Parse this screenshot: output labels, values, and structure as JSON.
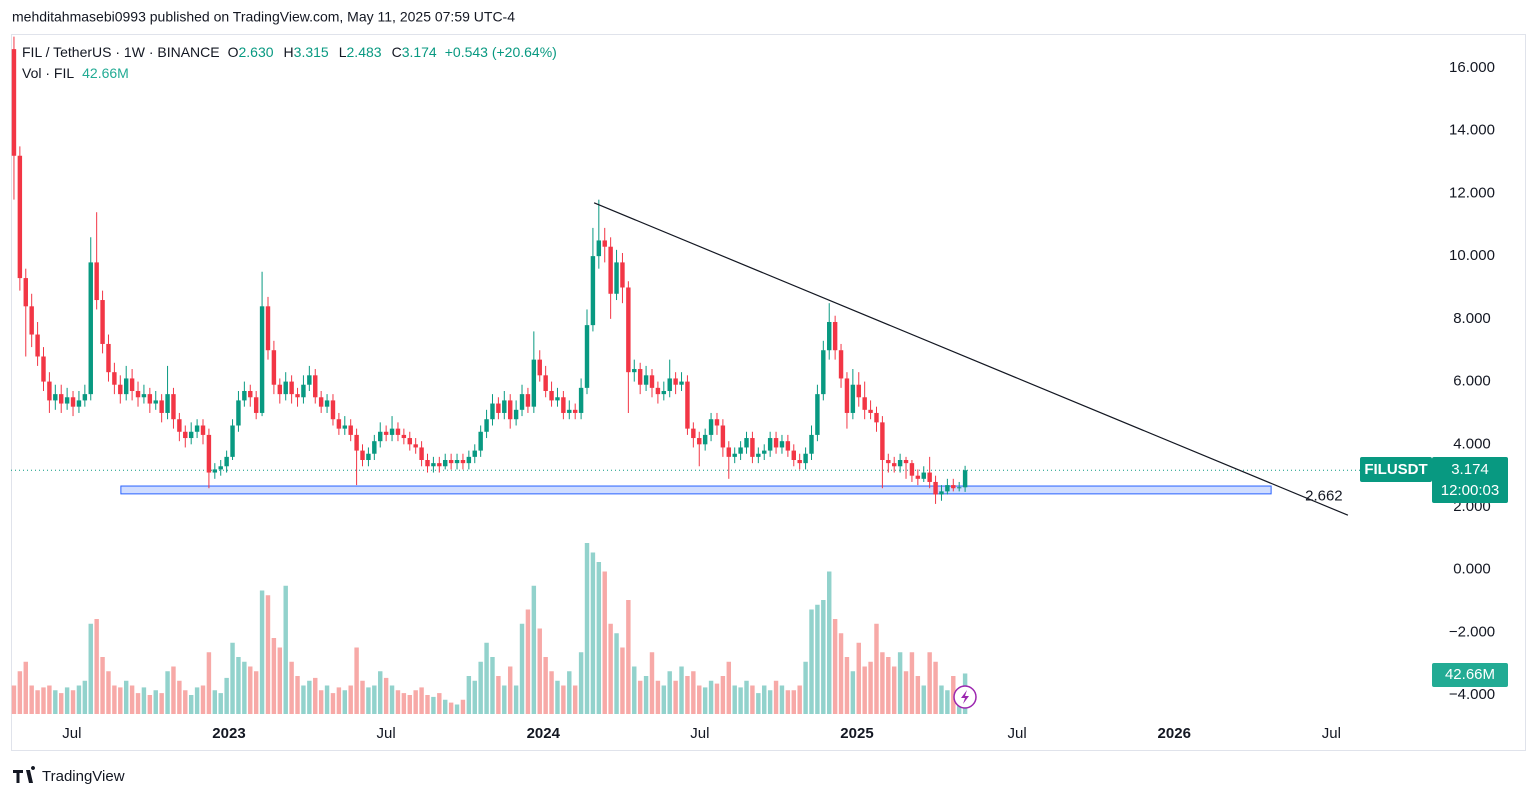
{
  "header": {
    "author_line": "mehditahmasebi0993 published on TradingView.com, May 11, 2025 07:59 UTC-4"
  },
  "footer": {
    "brand": "TradingView"
  },
  "chart_data": {
    "type": "candlestick",
    "symbol": "FIL / TetherUS · 1W · BINANCE",
    "ohlc_legend": [
      {
        "key": "O",
        "value": "2.630"
      },
      {
        "key": "H",
        "value": "3.315"
      },
      {
        "key": "L",
        "value": "2.483"
      },
      {
        "key": "C",
        "value": "3.174"
      }
    ],
    "change": "+0.543 (+20.64%)",
    "volume_title": "Vol · FIL",
    "ticker": "FILUSDT",
    "last_price": {
      "value": 3.174,
      "label": "3.174"
    },
    "countdown": "12:00:03",
    "last_volume": {
      "value": 42.66,
      "label": "42.66M"
    },
    "colors": {
      "up": "#089981",
      "down": "#f23645",
      "vol_up": "#92d2cc",
      "vol_down": "#f7a9a7"
    },
    "ylim": [
      -4.63,
      17.05
    ],
    "yticks": [
      {
        "value": -4,
        "label": "−4.000"
      },
      {
        "value": -2,
        "label": "−2.000"
      },
      {
        "value": 0,
        "label": "0.000"
      },
      {
        "value": 2,
        "label": "2.000"
      },
      {
        "value": 4,
        "label": "4.000"
      },
      {
        "value": 6,
        "label": "6.000"
      },
      {
        "value": 8,
        "label": "8.000"
      },
      {
        "value": 10,
        "label": "10.000"
      },
      {
        "value": 12,
        "label": "12.000"
      },
      {
        "value": 14,
        "label": "14.000"
      },
      {
        "value": 16,
        "label": "16.000"
      }
    ],
    "xlim": [
      -0.5,
      238
    ],
    "xticks": [
      {
        "value": 9.8,
        "label": "Jul"
      },
      {
        "value": 36.4,
        "label": "2023"
      },
      {
        "value": 63.0,
        "label": "Jul"
      },
      {
        "value": 89.6,
        "label": "2024"
      },
      {
        "value": 116.1,
        "label": "Jul"
      },
      {
        "value": 142.7,
        "label": "2025"
      },
      {
        "value": 169.8,
        "label": "Jul"
      },
      {
        "value": 196.4,
        "label": "2026"
      },
      {
        "value": 223.0,
        "label": "Jul"
      }
    ],
    "trendline": {
      "x": [
        98.2,
        225.8
      ],
      "y": [
        11.7,
        1.74
      ]
    },
    "zone": {
      "level": 2.662,
      "range": [
        2.42,
        2.67
      ],
      "x": [
        18.1,
        212.8
      ]
    },
    "candles": [
      [
        16.6,
        17.0,
        11.8,
        13.2
      ],
      [
        13.2,
        13.5,
        8.9,
        9.3
      ],
      [
        9.3,
        9.6,
        6.8,
        8.4
      ],
      [
        8.4,
        8.8,
        7.1,
        7.5
      ],
      [
        7.5,
        7.9,
        6.5,
        6.8
      ],
      [
        6.8,
        7.1,
        5.7,
        6.0
      ],
      [
        6.0,
        6.3,
        5.0,
        5.4
      ],
      [
        5.4,
        5.9,
        5.1,
        5.6
      ],
      [
        5.6,
        5.9,
        5.0,
        5.3
      ],
      [
        5.3,
        5.8,
        5.1,
        5.5
      ],
      [
        5.5,
        5.7,
        4.9,
        5.2
      ],
      [
        5.2,
        5.7,
        5.0,
        5.4
      ],
      [
        5.4,
        5.9,
        5.2,
        5.6
      ],
      [
        5.6,
        10.6,
        5.4,
        9.8
      ],
      [
        9.8,
        11.4,
        8.3,
        8.6
      ],
      [
        8.6,
        8.9,
        6.9,
        7.2
      ],
      [
        7.2,
        7.5,
        6.0,
        6.3
      ],
      [
        6.3,
        6.6,
        5.6,
        5.9
      ],
      [
        5.9,
        6.2,
        5.3,
        5.6
      ],
      [
        5.6,
        6.5,
        5.4,
        6.1
      ],
      [
        6.1,
        6.4,
        5.4,
        5.7
      ],
      [
        5.7,
        6.0,
        5.2,
        5.5
      ],
      [
        5.5,
        5.9,
        5.3,
        5.6
      ],
      [
        5.6,
        5.8,
        5.0,
        5.3
      ],
      [
        5.3,
        5.7,
        5.1,
        5.4
      ],
      [
        5.4,
        5.6,
        4.7,
        5.0
      ],
      [
        5.0,
        6.5,
        4.8,
        5.6
      ],
      [
        5.6,
        5.8,
        4.5,
        4.8
      ],
      [
        4.8,
        5.0,
        4.1,
        4.4
      ],
      [
        4.4,
        4.6,
        3.9,
        4.2
      ],
      [
        4.2,
        4.7,
        4.0,
        4.4
      ],
      [
        4.4,
        4.8,
        4.2,
        4.6
      ],
      [
        4.6,
        4.8,
        4.0,
        4.3
      ],
      [
        4.3,
        4.5,
        2.6,
        3.1
      ],
      [
        3.1,
        3.4,
        2.9,
        3.2
      ],
      [
        3.2,
        3.5,
        3.0,
        3.3
      ],
      [
        3.3,
        3.8,
        3.1,
        3.6
      ],
      [
        3.6,
        4.8,
        3.5,
        4.6
      ],
      [
        4.6,
        5.7,
        4.4,
        5.4
      ],
      [
        5.4,
        6.0,
        5.2,
        5.7
      ],
      [
        5.7,
        5.9,
        5.2,
        5.5
      ],
      [
        5.5,
        5.7,
        4.8,
        5.0
      ],
      [
        5.0,
        9.5,
        4.9,
        8.4
      ],
      [
        8.4,
        8.7,
        6.7,
        7.0
      ],
      [
        7.0,
        7.3,
        5.6,
        5.9
      ],
      [
        5.9,
        6.1,
        5.3,
        5.6
      ],
      [
        5.6,
        6.3,
        5.4,
        6.0
      ],
      [
        6.0,
        6.2,
        5.3,
        5.6
      ],
      [
        5.6,
        5.8,
        5.2,
        5.5
      ],
      [
        5.5,
        6.2,
        5.3,
        5.9
      ],
      [
        5.9,
        6.5,
        5.7,
        6.2
      ],
      [
        6.2,
        6.4,
        5.3,
        5.5
      ],
      [
        5.5,
        5.7,
        5.0,
        5.2
      ],
      [
        5.2,
        5.6,
        5.0,
        5.4
      ],
      [
        5.4,
        5.6,
        4.6,
        4.8
      ],
      [
        4.8,
        5.0,
        4.3,
        4.5
      ],
      [
        4.5,
        4.9,
        4.3,
        4.6
      ],
      [
        4.6,
        4.8,
        4.1,
        4.3
      ],
      [
        4.3,
        4.5,
        2.7,
        3.8
      ],
      [
        3.8,
        4.0,
        3.3,
        3.5
      ],
      [
        3.5,
        3.9,
        3.3,
        3.7
      ],
      [
        3.7,
        4.3,
        3.5,
        4.1
      ],
      [
        4.1,
        4.7,
        3.9,
        4.4
      ],
      [
        4.4,
        4.6,
        4.1,
        4.3
      ],
      [
        4.3,
        4.9,
        4.1,
        4.5
      ],
      [
        4.5,
        4.7,
        4.1,
        4.3
      ],
      [
        4.3,
        4.5,
        4.0,
        4.2
      ],
      [
        4.2,
        4.4,
        3.8,
        4.0
      ],
      [
        4.0,
        4.2,
        3.7,
        3.9
      ],
      [
        3.9,
        4.1,
        3.3,
        3.5
      ],
      [
        3.5,
        3.7,
        3.1,
        3.3
      ],
      [
        3.3,
        3.6,
        3.1,
        3.4
      ],
      [
        3.4,
        3.6,
        3.1,
        3.3
      ],
      [
        3.3,
        3.7,
        3.2,
        3.5
      ],
      [
        3.5,
        3.7,
        3.2,
        3.4
      ],
      [
        3.4,
        3.7,
        3.2,
        3.5
      ],
      [
        3.5,
        3.7,
        3.2,
        3.4
      ],
      [
        3.4,
        3.8,
        3.2,
        3.6
      ],
      [
        3.6,
        4.0,
        3.4,
        3.8
      ],
      [
        3.8,
        4.6,
        3.6,
        4.4
      ],
      [
        4.4,
        5.1,
        4.2,
        4.8
      ],
      [
        4.8,
        5.6,
        4.6,
        5.3
      ],
      [
        5.3,
        5.5,
        4.8,
        5.0
      ],
      [
        5.0,
        5.7,
        4.8,
        5.4
      ],
      [
        5.4,
        5.6,
        4.5,
        4.8
      ],
      [
        4.8,
        5.4,
        4.6,
        5.1
      ],
      [
        5.1,
        5.9,
        4.9,
        5.6
      ],
      [
        5.6,
        5.8,
        5.0,
        5.2
      ],
      [
        5.2,
        7.6,
        5.0,
        6.7
      ],
      [
        6.7,
        7.0,
        6.0,
        6.2
      ],
      [
        6.2,
        6.5,
        5.5,
        5.7
      ],
      [
        5.7,
        6.0,
        5.2,
        5.4
      ],
      [
        5.4,
        5.8,
        5.2,
        5.5
      ],
      [
        5.5,
        5.7,
        4.8,
        5.0
      ],
      [
        5.0,
        5.4,
        4.8,
        5.1
      ],
      [
        5.1,
        5.3,
        4.8,
        5.0
      ],
      [
        5.0,
        6.1,
        4.8,
        5.8
      ],
      [
        5.8,
        8.3,
        5.6,
        7.8
      ],
      [
        7.8,
        10.9,
        7.6,
        10.0
      ],
      [
        10.0,
        11.8,
        9.6,
        10.5
      ],
      [
        10.5,
        10.9,
        9.8,
        10.3
      ],
      [
        10.3,
        10.6,
        8.0,
        8.8
      ],
      [
        8.8,
        10.2,
        8.6,
        9.8
      ],
      [
        9.8,
        10.1,
        8.5,
        9.0
      ],
      [
        9.0,
        9.2,
        5.0,
        6.3
      ],
      [
        6.3,
        6.7,
        6.0,
        6.4
      ],
      [
        6.4,
        6.6,
        5.6,
        5.9
      ],
      [
        5.9,
        6.5,
        5.7,
        6.2
      ],
      [
        6.2,
        6.4,
        5.5,
        5.8
      ],
      [
        5.8,
        6.0,
        5.3,
        5.6
      ],
      [
        5.6,
        6.0,
        5.4,
        5.7
      ],
      [
        5.7,
        6.7,
        5.5,
        6.1
      ],
      [
        6.1,
        6.3,
        5.6,
        5.9
      ],
      [
        5.9,
        6.3,
        5.7,
        6.0
      ],
      [
        6.0,
        6.2,
        4.3,
        4.5
      ],
      [
        4.5,
        4.7,
        3.9,
        4.2
      ],
      [
        4.2,
        4.4,
        3.3,
        4.0
      ],
      [
        4.0,
        4.5,
        3.8,
        4.3
      ],
      [
        4.3,
        5.0,
        4.1,
        4.8
      ],
      [
        4.8,
        5.0,
        4.3,
        4.6
      ],
      [
        4.6,
        4.8,
        3.6,
        3.9
      ],
      [
        3.9,
        4.1,
        2.9,
        3.6
      ],
      [
        3.6,
        3.9,
        3.4,
        3.7
      ],
      [
        3.7,
        4.1,
        3.5,
        3.9
      ],
      [
        3.9,
        4.4,
        3.7,
        4.2
      ],
      [
        4.2,
        4.4,
        3.4,
        3.6
      ],
      [
        3.6,
        3.9,
        3.4,
        3.7
      ],
      [
        3.7,
        4.0,
        3.5,
        3.8
      ],
      [
        3.8,
        4.4,
        3.6,
        4.2
      ],
      [
        4.2,
        4.4,
        3.7,
        3.9
      ],
      [
        3.9,
        4.3,
        3.7,
        4.1
      ],
      [
        4.1,
        4.3,
        3.6,
        3.8
      ],
      [
        3.8,
        4.0,
        3.3,
        3.5
      ],
      [
        3.5,
        3.7,
        3.2,
        3.4
      ],
      [
        3.4,
        3.9,
        3.2,
        3.7
      ],
      [
        3.7,
        4.6,
        3.5,
        4.3
      ],
      [
        4.3,
        5.9,
        4.1,
        5.6
      ],
      [
        5.6,
        7.3,
        5.4,
        7.0
      ],
      [
        7.0,
        8.5,
        6.7,
        7.9
      ],
      [
        7.9,
        8.1,
        6.7,
        7.0
      ],
      [
        7.0,
        7.2,
        5.8,
        6.1
      ],
      [
        6.1,
        6.3,
        4.5,
        5.0
      ],
      [
        5.0,
        6.4,
        4.8,
        5.9
      ],
      [
        5.9,
        6.3,
        5.2,
        5.5
      ],
      [
        5.5,
        6.0,
        4.8,
        5.1
      ],
      [
        5.1,
        5.4,
        4.8,
        5.0
      ],
      [
        5.0,
        5.2,
        4.4,
        4.7
      ],
      [
        4.7,
        4.9,
        2.6,
        3.5
      ],
      [
        3.5,
        3.7,
        3.1,
        3.4
      ],
      [
        3.4,
        3.6,
        3.1,
        3.3
      ],
      [
        3.3,
        3.7,
        3.1,
        3.5
      ],
      [
        3.5,
        3.6,
        2.9,
        3.4
      ],
      [
        3.4,
        3.5,
        2.8,
        3.0
      ],
      [
        3.0,
        3.2,
        2.7,
        2.9
      ],
      [
        2.9,
        3.3,
        2.8,
        3.1
      ],
      [
        3.1,
        3.6,
        2.6,
        2.8
      ],
      [
        2.8,
        3.0,
        2.1,
        2.4
      ],
      [
        2.4,
        2.7,
        2.2,
        2.5
      ],
      [
        2.5,
        2.9,
        2.4,
        2.7
      ],
      [
        2.7,
        2.9,
        2.5,
        2.6
      ],
      [
        2.6,
        2.8,
        2.5,
        2.63
      ],
      [
        2.63,
        3.315,
        2.483,
        3.174
      ]
    ],
    "volume": [
      30,
      45,
      55,
      30,
      25,
      28,
      30,
      25,
      22,
      28,
      25,
      30,
      35,
      95,
      100,
      60,
      45,
      30,
      28,
      35,
      30,
      22,
      28,
      20,
      25,
      22,
      45,
      50,
      35,
      25,
      20,
      28,
      30,
      65,
      25,
      22,
      38,
      75,
      60,
      55,
      50,
      45,
      130,
      125,
      80,
      70,
      135,
      55,
      40,
      30,
      35,
      38,
      25,
      30,
      22,
      28,
      25,
      30,
      70,
      35,
      28,
      30,
      45,
      38,
      30,
      25,
      22,
      20,
      25,
      28,
      20,
      18,
      22,
      15,
      12,
      10,
      15,
      40,
      35,
      55,
      75,
      60,
      40,
      30,
      50,
      30,
      95,
      110,
      135,
      90,
      60,
      45,
      35,
      30,
      45,
      30,
      65,
      180,
      170,
      160,
      150,
      95,
      85,
      70,
      120,
      50,
      35,
      40,
      65,
      35,
      30,
      45,
      35,
      50,
      40,
      45,
      30,
      28,
      35,
      32,
      40,
      55,
      30,
      28,
      35,
      30,
      22,
      30,
      25,
      35,
      30,
      25,
      25,
      30,
      55,
      110,
      115,
      120,
      150,
      100,
      85,
      60,
      45,
      75,
      50,
      55,
      95,
      65,
      60,
      50,
      65,
      45,
      65,
      40,
      30,
      65,
      55,
      30,
      25,
      40,
      20,
      42.66
    ]
  }
}
